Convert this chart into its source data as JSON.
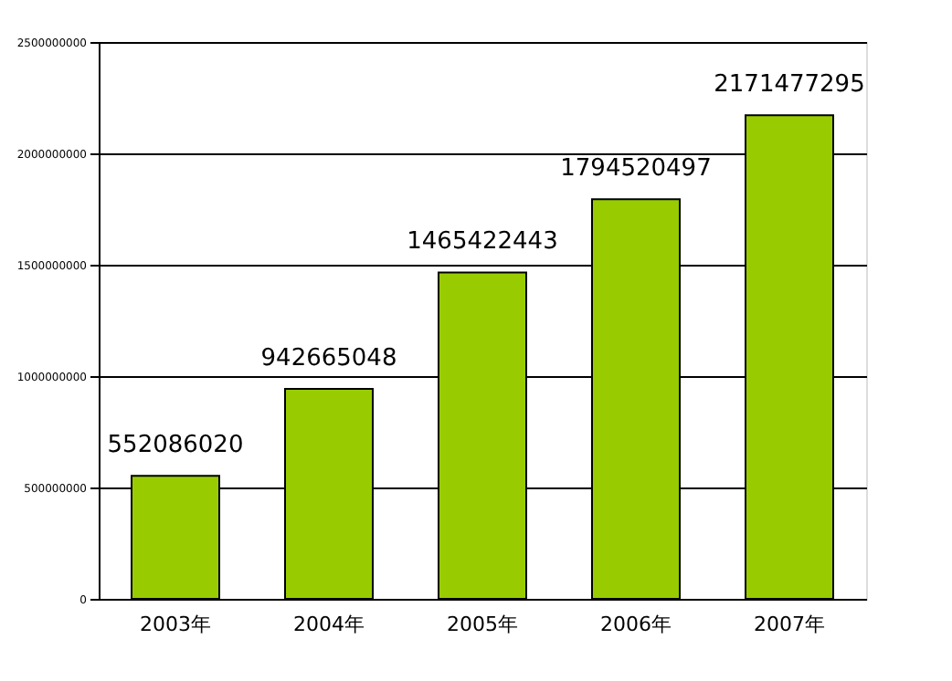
{
  "chart_data": {
    "type": "bar",
    "categories": [
      "2003年",
      "2004年",
      "2005年",
      "2006年",
      "2007年"
    ],
    "values": [
      552086020,
      942665048,
      1465422443,
      1794520497,
      2171477295
    ],
    "color": "#99cc00",
    "ylim": [
      0,
      2500000000
    ],
    "yticks": [
      0,
      500000000,
      1000000000,
      1500000000,
      2000000000,
      2500000000
    ],
    "grid": "y",
    "data_labels": true
  }
}
